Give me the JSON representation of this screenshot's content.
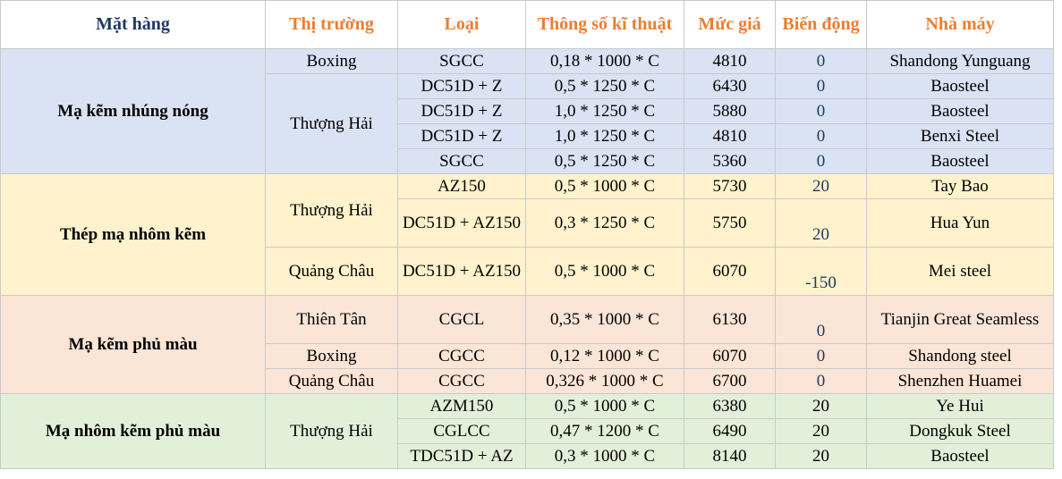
{
  "headers": {
    "product": "Mặt hàng",
    "market": "Thị trường",
    "type": "Loại",
    "spec": "Thông số kĩ thuật",
    "price": "Mức giá",
    "change": "Biến động",
    "factory": "Nhà máy"
  },
  "groups": [
    {
      "product": "Mạ kẽm nhúng nóng",
      "rows": [
        {
          "market": "Boxing",
          "type": "SGCC",
          "spec": "0,18 * 1000 * C",
          "price": "4810",
          "change": "0",
          "factory": "Shandong Yunguang"
        },
        {
          "market": "Thượng Hải",
          "type": "DC51D + Z",
          "spec": "0,5 * 1250 * C",
          "price": "6430",
          "change": "0",
          "factory": "Baosteel"
        },
        {
          "type": "DC51D + Z",
          "spec": "1,0 * 1250 * C",
          "price": "5880",
          "change": "0",
          "factory": "Baosteel"
        },
        {
          "type": "DC51D + Z",
          "spec": "1,0 * 1250 * C",
          "price": "4810",
          "change": "0",
          "factory": "Benxi Steel"
        },
        {
          "type": "SGCC",
          "spec": "0,5 * 1250 * C",
          "price": "5360",
          "change": "0",
          "factory": "Baosteel"
        }
      ]
    },
    {
      "product": "Thép mạ nhôm kẽm",
      "rows": [
        {
          "market": "Thượng Hải",
          "type": "AZ150",
          "spec": "0,5 * 1000 * C",
          "price": "5730",
          "change": "20",
          "factory": "Tay Bao"
        },
        {
          "type": "DC51D + AZ150",
          "spec": "0,3 * 1250 * C",
          "price": "5750",
          "change": "20",
          "factory": "Hua Yun"
        },
        {
          "market": "Quảng Châu",
          "type": "DC51D + AZ150",
          "spec": "0,5 * 1000 * C",
          "price": "6070",
          "change": "-150",
          "factory": "Mei steel"
        }
      ]
    },
    {
      "product": "Mạ kẽm phủ màu",
      "rows": [
        {
          "market": "Thiên Tân",
          "type": "CGCL",
          "spec": "0,35 * 1000 * C",
          "price": "6130",
          "change": "0",
          "factory": "Tianjin Great Seamless"
        },
        {
          "market": "Boxing",
          "type": "CGCC",
          "spec": "0,12 * 1000 * C",
          "price": "6070",
          "change": "0",
          "factory": "Shandong steel"
        },
        {
          "market": "Quảng Châu",
          "type": "CGCC",
          "spec": "0,326 * 1000 * C",
          "price": "6700",
          "change": "0",
          "factory": "Shenzhen Huamei"
        }
      ]
    },
    {
      "product": "Mạ nhôm kẽm phủ màu",
      "rows": [
        {
          "market": "Thượng Hải",
          "type": "AZM150",
          "spec": "0,5 * 1000 * C",
          "price": "6380",
          "change": "20",
          "factory": "Ye Hui"
        },
        {
          "type": "CGLCC",
          "spec": "0,47 * 1200 * C",
          "price": "6490",
          "change": "20",
          "factory": "Dongkuk Steel"
        },
        {
          "type": "TDC51D + AZ",
          "spec": "0,3 * 1000 * C",
          "price": "8140",
          "change": "20",
          "factory": "Baosteel"
        }
      ]
    }
  ],
  "colors": {
    "header_dark": "#1f3864",
    "header_orange": "#ed7d31",
    "group1": "#dae3f3",
    "group2": "#fff2cc",
    "group3": "#fbe5d6",
    "group4": "#e2f0d9"
  }
}
